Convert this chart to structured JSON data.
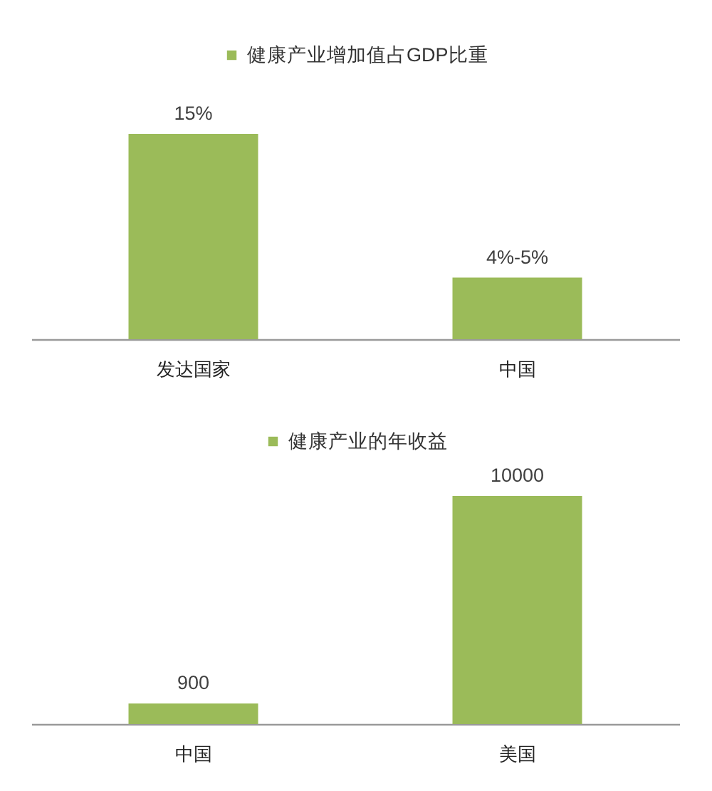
{
  "chart_data": [
    {
      "type": "bar",
      "categories": [
        "发达国家",
        "中国"
      ],
      "series": [
        {
          "name": "健康产业增加值占GDP比重",
          "color": "#9bbb59",
          "values": [
            15,
            4.5
          ],
          "value_labels": [
            "15%",
            "4%-5%"
          ]
        }
      ],
      "legend": "top"
    },
    {
      "type": "bar",
      "categories": [
        "中国",
        "美国"
      ],
      "series": [
        {
          "name": "健康产业的年收益",
          "color": "#9bbb59",
          "values": [
            900,
            10000
          ]
        }
      ],
      "legend": "top",
      "data_labels": true
    }
  ]
}
